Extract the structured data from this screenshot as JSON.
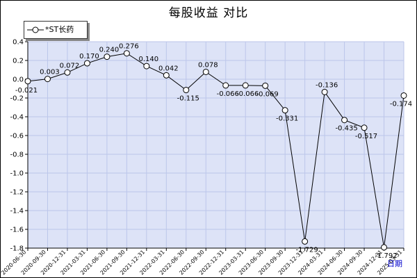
{
  "chart_data": {
    "type": "line",
    "title": "每股收益  对比",
    "xlabel": "日期",
    "ylabel": "",
    "ylim": [
      -1.8,
      0.4
    ],
    "yticks": [
      "0.4",
      "0.2",
      "0.0",
      "-0.2",
      "-0.4",
      "-0.6",
      "-0.8",
      "-1.0",
      "-1.2",
      "-1.4",
      "-1.6",
      "-1.8"
    ],
    "ytick_values": [
      0.4,
      0.2,
      0.0,
      -0.2,
      -0.4,
      -0.6,
      -0.8,
      -1.0,
      -1.2,
      -1.4,
      -1.6,
      -1.8
    ],
    "grid": true,
    "legend_position": "top-left",
    "categories": [
      "2020-06-30",
      "2020-09-30",
      "2020-12-31",
      "2021-03-31",
      "2021-06-30",
      "2021-09-30",
      "2021-12-31",
      "2022-03-31",
      "2022-06-30",
      "2022-09-30",
      "2022-12-31",
      "2023-03-31",
      "2023-06-30",
      "2023-09-30",
      "2023-12-31",
      "2024-03-31",
      "2024-06-30",
      "2024-09-30",
      "2024-12-31",
      "2025-03-31"
    ],
    "series": [
      {
        "name": "*ST长药",
        "values": [
          -0.021,
          0.003,
          0.072,
          0.17,
          0.24,
          0.276,
          0.14,
          0.042,
          -0.115,
          0.078,
          -0.066,
          -0.066,
          -0.069,
          -0.331,
          -1.729,
          -0.136,
          -0.435,
          -0.517,
          -1.792,
          -0.174
        ],
        "labels": [
          "-0.021",
          "0.003",
          "0.072",
          "0.170",
          "0.240",
          "0.276",
          "0.140",
          "0.042",
          "-0.115",
          "0.078",
          "-0.066",
          "-0.066",
          "-0.069",
          "-0.331",
          "-1.729",
          "-0.136",
          "-0.435",
          "-0.517",
          "-1.792",
          "-0.174"
        ]
      }
    ],
    "colors": {
      "plot_bg": "#dde3f7",
      "grid": "#bcc6ea",
      "line": "#000000",
      "marker_fill": "#ffffff"
    }
  }
}
